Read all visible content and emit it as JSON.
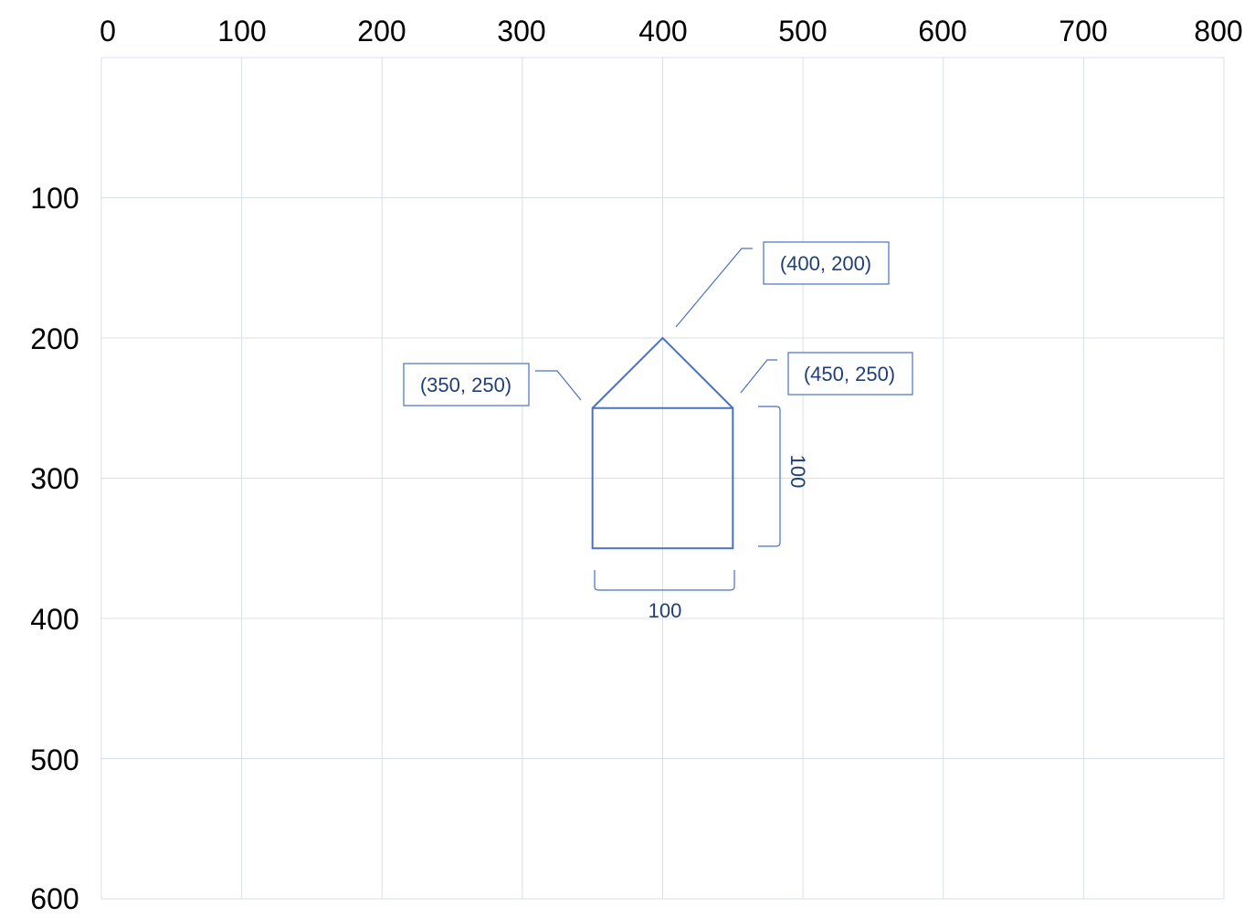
{
  "grid": {
    "x_range": [
      0,
      800
    ],
    "y_range": [
      0,
      600
    ],
    "x_ticks": [
      "0",
      "100",
      "200",
      "300",
      "400",
      "500",
      "600",
      "700",
      "800"
    ],
    "y_ticks": [
      "100",
      "200",
      "300",
      "400",
      "500",
      "600"
    ],
    "grid_color": "#d9dfe7"
  },
  "house": {
    "stroke_color": "#4a72c0",
    "roof": [
      [
        350,
        250
      ],
      [
        400,
        200
      ],
      [
        450,
        250
      ]
    ],
    "body": {
      "x": 350,
      "y": 250,
      "width": 100,
      "height": 100
    }
  },
  "callouts": [
    {
      "label": "(400, 200)",
      "point": [
        400,
        200
      ]
    },
    {
      "label": "(350, 250)",
      "point": [
        350,
        250
      ]
    },
    {
      "label": "(450, 250)",
      "point": [
        450,
        250
      ]
    }
  ],
  "dimensions": {
    "width_label": "100",
    "height_label": "100"
  },
  "text_color": "#1f3f78"
}
